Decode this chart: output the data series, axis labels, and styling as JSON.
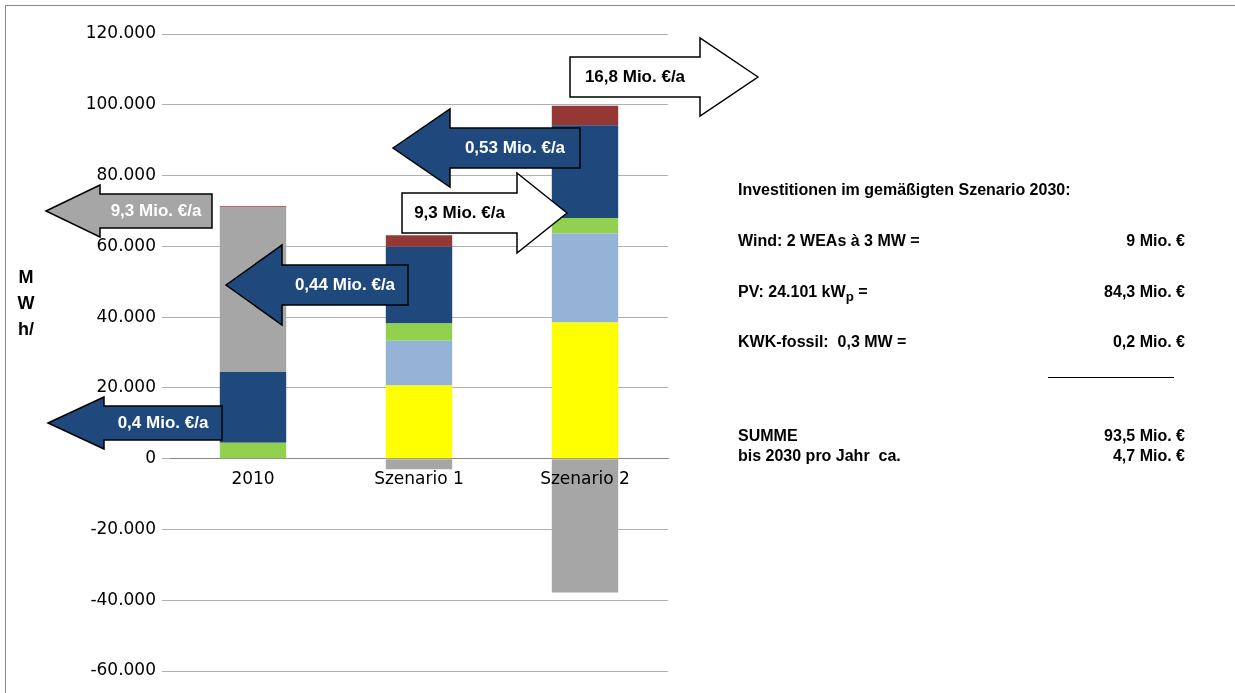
{
  "chart_data": {
    "type": "bar",
    "stacked": true,
    "ylabel": "MWh/",
    "categories": [
      "2010",
      "Szenario 1",
      "Szenario 2"
    ],
    "series": [
      {
        "color": "#ffff00",
        "values": [
          null,
          20700,
          38500
        ]
      },
      {
        "color": "#95b3d7",
        "values": [
          null,
          12600,
          25100
        ]
      },
      {
        "color": "#92d050",
        "values": [
          4500,
          4900,
          4400
        ]
      },
      {
        "color": "#1f497d",
        "values": [
          20000,
          21700,
          26200
        ]
      },
      {
        "color": "#a6a6a6",
        "values": [
          46500,
          -3000,
          -37800
        ]
      },
      {
        "color": "#953735",
        "values": [
          300,
          3200,
          5500
        ]
      }
    ],
    "ylim": [
      -60000,
      120000
    ],
    "yticks": [
      {
        "value": -60000,
        "label": "-60.000"
      },
      {
        "value": -40000,
        "label": "-40.000"
      },
      {
        "value": -20000,
        "label": "-20.000"
      },
      0,
      {
        "value": 20000,
        "label": "20.000"
      },
      {
        "value": 40000,
        "label": "40.000"
      },
      {
        "value": 60000,
        "label": "60.000"
      },
      {
        "value": 80000,
        "label": "80.000"
      },
      {
        "value": 100000,
        "label": "100.000"
      },
      {
        "value": 120000,
        "label": "120.000"
      }
    ],
    "grid": "y",
    "legend": false,
    "annotations": [
      "9,3 Mio. €/a",
      "0,44 Mio. €/a",
      "0,4 Mio. €/a",
      "0,53 Mio. €/a",
      "9,3 Mio. €/a",
      "16,8 Mio. €/a",
      "Investitionen im gemäßigten Szenario 2030:",
      "Wind: 2 WEAs à 3 MW =",
      "9 Mio. €",
      "PV: 24.101 kW$_{p}$ =",
      "84,3 Mio. €",
      "KWK-fossil:  0,3 MW =",
      "0,2 Mio. €",
      "SUMME",
      "93,5 Mio. €",
      "bis 2030 pro Jahr  ca.",
      "4,7 Mio. €"
    ]
  }
}
